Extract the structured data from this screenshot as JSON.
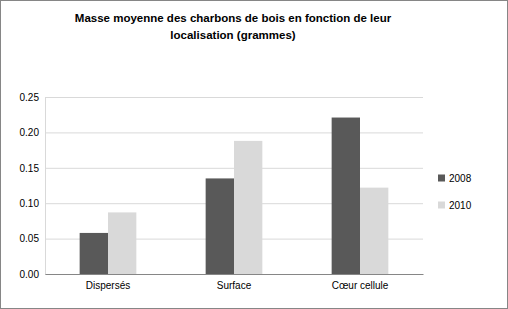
{
  "chart_data": {
    "type": "bar",
    "title": "Masse moyenne des charbons de bois en fonction de leur localisation (grammes)",
    "categories": [
      "Dispersés",
      "Surface",
      "Cœur cellule"
    ],
    "series": [
      {
        "name": "2008",
        "color": "#595959",
        "values": [
          0.058,
          0.135,
          0.221
        ]
      },
      {
        "name": "2010",
        "color": "#d9d9d9",
        "values": [
          0.087,
          0.188,
          0.122
        ]
      }
    ],
    "ylim": [
      0,
      0.25
    ],
    "yticks": [
      {
        "value": 0,
        "label": "0.00"
      },
      {
        "value": 0.05,
        "label": "0.05"
      },
      {
        "value": 0.1,
        "label": "0.10"
      },
      {
        "value": 0.15,
        "label": "0.15"
      },
      {
        "value": 0.2,
        "label": "0.20"
      },
      {
        "value": 0.25,
        "label": "0.25"
      }
    ],
    "grid": true,
    "legend": "right"
  }
}
